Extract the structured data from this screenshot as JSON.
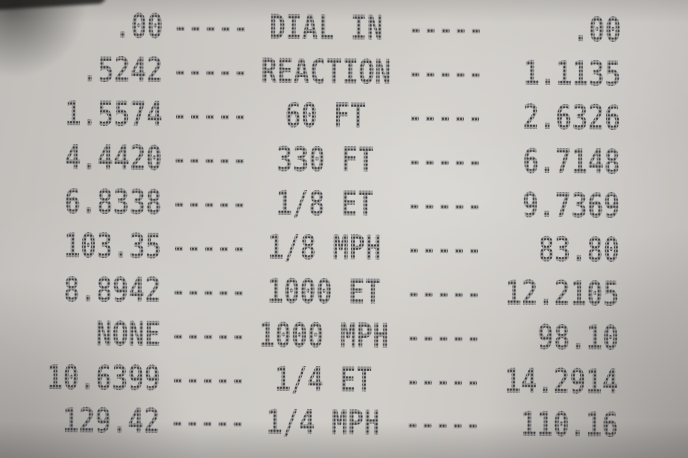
{
  "photo": {
    "paper_color": "#cdcac6",
    "ink_color": "#3a3b40",
    "description_colors": {
      "paper_highlight": "#d1cec9",
      "paper_shadow": "#bcb9b5"
    }
  },
  "timeslip": {
    "separator": "-----",
    "rows": [
      {
        "left": ".00",
        "label": "DIAL IN",
        "right": ".00"
      },
      {
        "left": ".5242",
        "label": "REACTION",
        "right": "1.1135"
      },
      {
        "left": "1.5574",
        "label": "60 FT",
        "right": "2.6326"
      },
      {
        "left": "4.4420",
        "label": "330 FT",
        "right": "6.7148"
      },
      {
        "left": "6.8338",
        "label": "1/8 ET",
        "right": "9.7369"
      },
      {
        "left": "103.35",
        "label": "1/8 MPH",
        "right": "83.80"
      },
      {
        "left": "8.8942",
        "label": "1000 ET",
        "right": "12.2105"
      },
      {
        "left": "NONE",
        "label": "1000 MPH",
        "right": "98.10"
      },
      {
        "left": "10.6399",
        "label": "1/4 ET",
        "right": "14.2914"
      },
      {
        "left": "129.42",
        "label": "1/4 MPH",
        "right": "110.16"
      }
    ]
  }
}
